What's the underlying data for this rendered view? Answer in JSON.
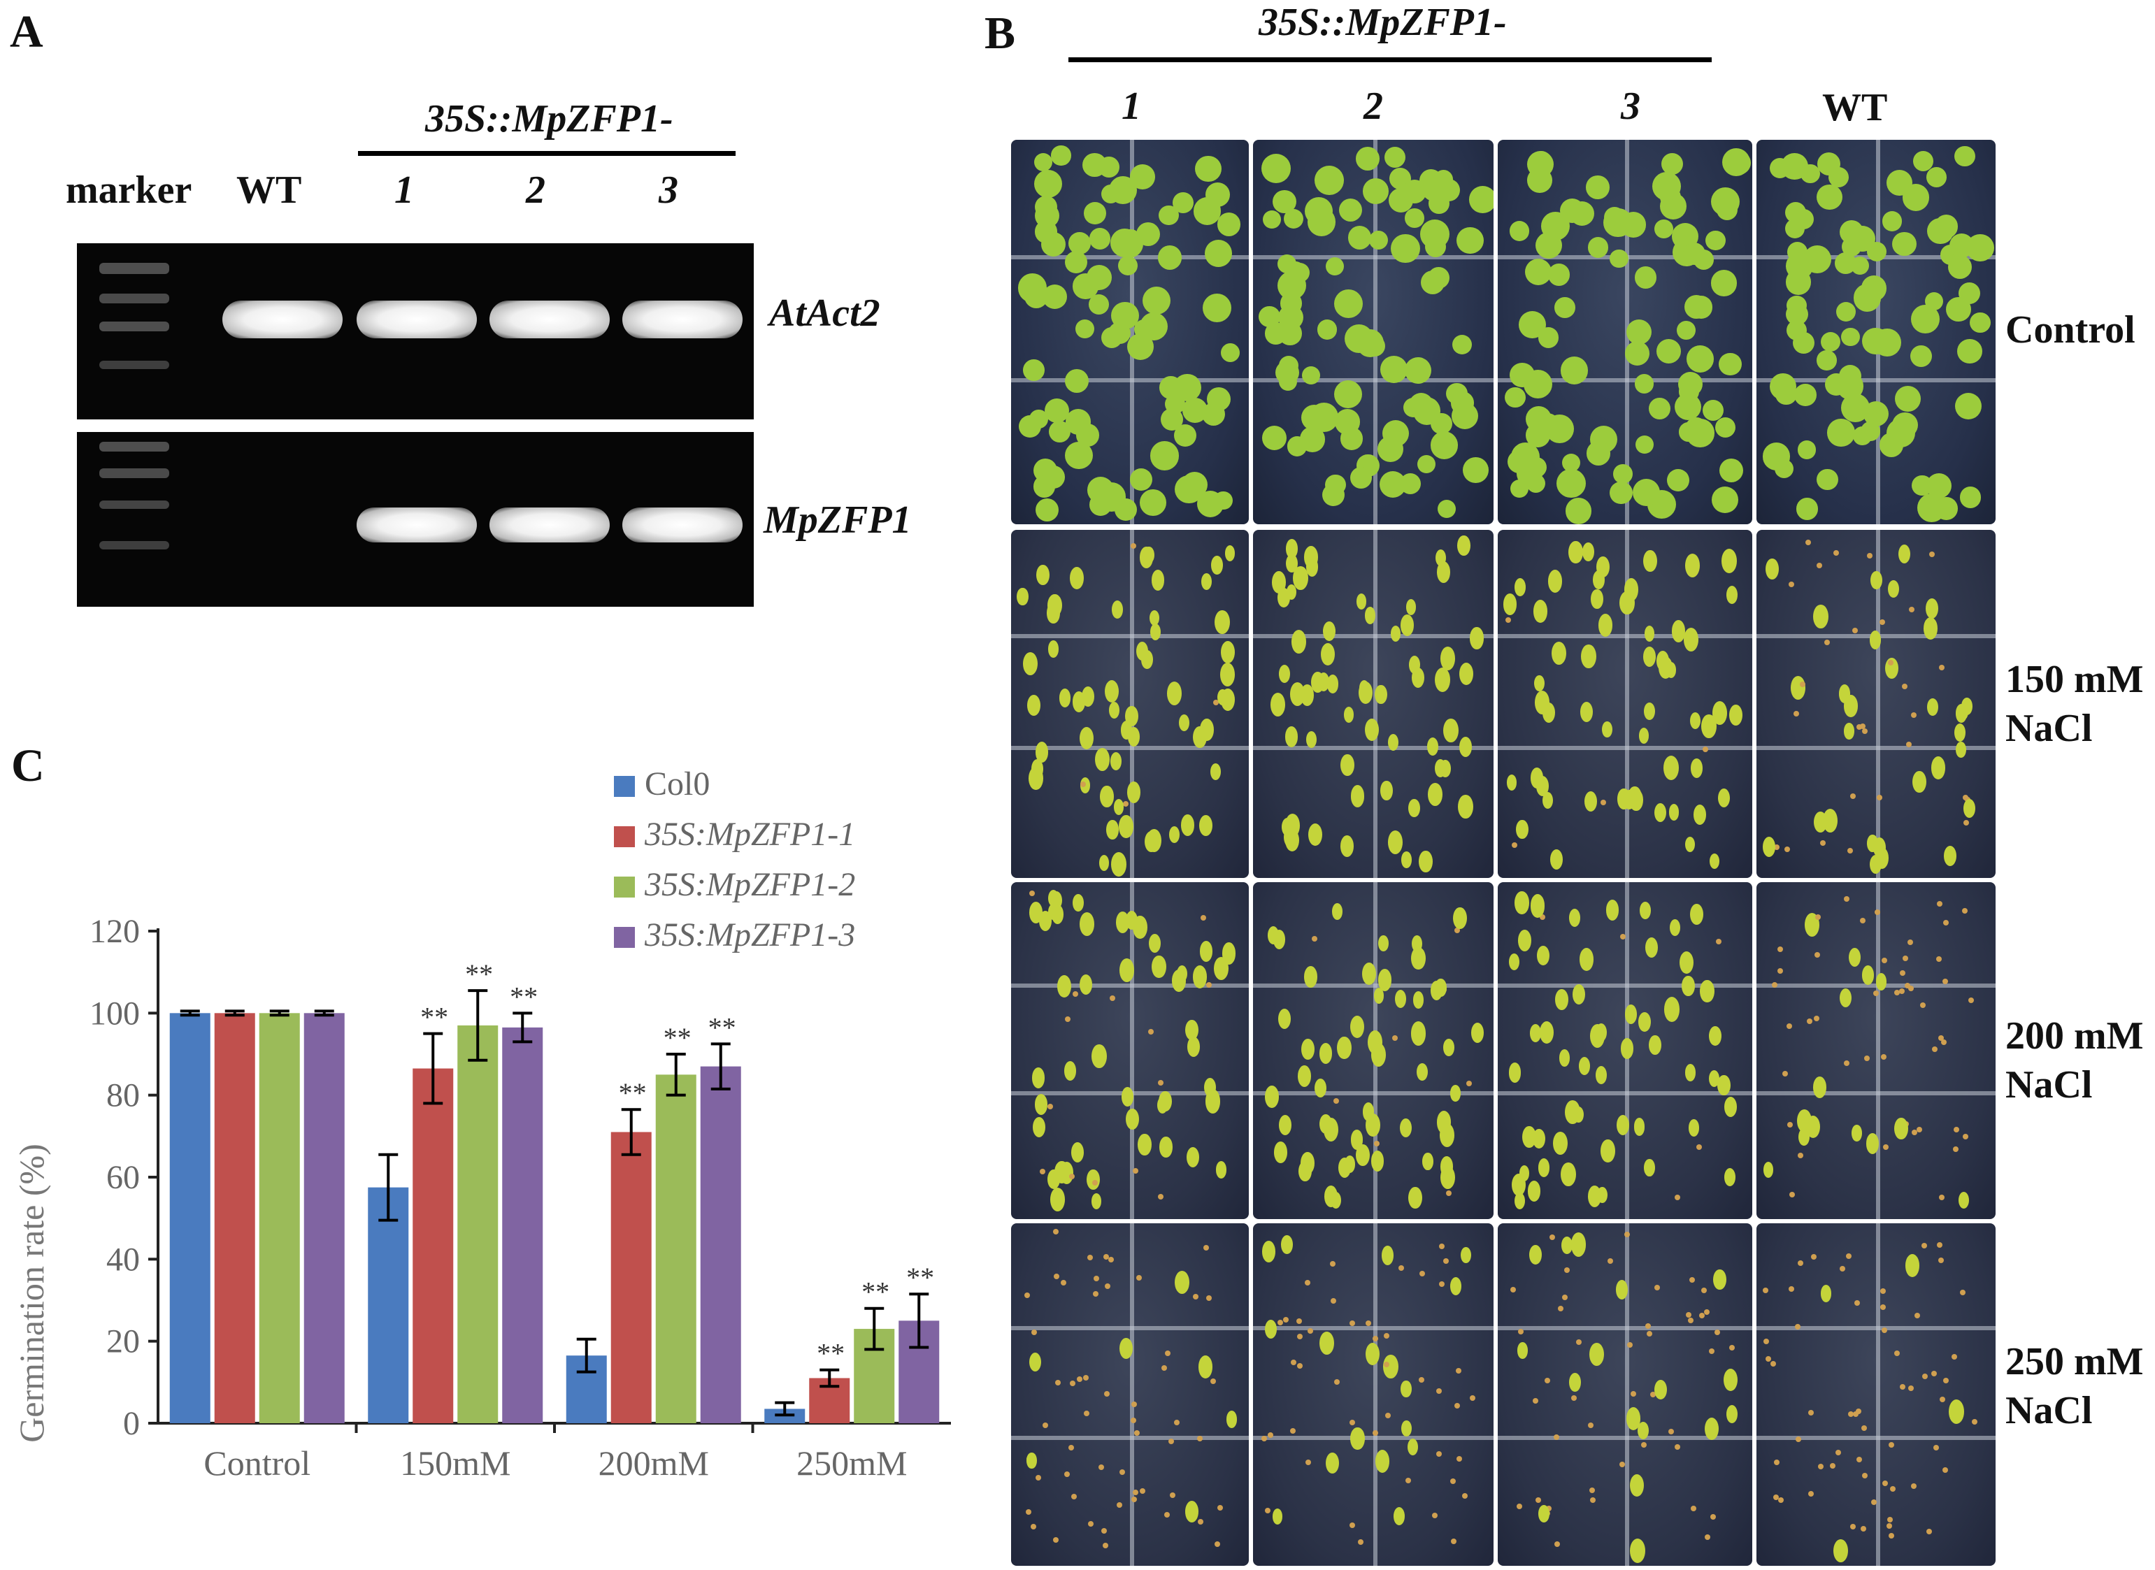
{
  "panel_a": {
    "letter": "A",
    "construct_label": "35S::MpZFP1-",
    "lanes": {
      "marker": "marker",
      "wt": "WT",
      "l1": "1",
      "l2": "2",
      "l3": "3"
    },
    "gene_top": "AtAct2",
    "gene_bottom": "MpZFP1"
  },
  "panel_b": {
    "letter": "B",
    "construct_label": "35S::MpZFP1-",
    "columns": [
      "1",
      "2",
      "3",
      "WT"
    ],
    "rows": [
      {
        "line1": "Control",
        "line2": ""
      },
      {
        "line1": "150 mM",
        "line2": "NaCl"
      },
      {
        "line1": "200 mM",
        "line2": "NaCl"
      },
      {
        "line1": "250 mM",
        "line2": "NaCl"
      }
    ]
  },
  "panel_c": {
    "letter": "C"
  },
  "chart_data": {
    "type": "bar",
    "title": "",
    "xlabel": "",
    "ylabel": "Germination rate (%)",
    "ylim": [
      0,
      120
    ],
    "yticks": [
      "0",
      "20",
      "40",
      "60",
      "80",
      "100",
      "120"
    ],
    "categories": [
      "Control",
      "150mM",
      "200mM",
      "250mM"
    ],
    "series": [
      {
        "name": "Col0",
        "color": "#4a7bbf",
        "values": [
          100,
          57.5,
          16.5,
          3.5
        ],
        "errors": [
          0.5,
          8,
          4,
          1.5
        ],
        "sig": [
          "",
          "",
          "",
          ""
        ]
      },
      {
        "name": "35S:MpZFP1-1",
        "color": "#c0504d",
        "values": [
          100,
          86.5,
          71,
          11
        ],
        "errors": [
          0.5,
          8.5,
          5.5,
          2
        ],
        "sig": [
          "",
          "**",
          "**",
          "**"
        ]
      },
      {
        "name": "35S:MpZFP1-2",
        "color": "#9bbb59",
        "values": [
          100,
          97,
          85,
          23
        ],
        "errors": [
          0.5,
          8.5,
          5,
          5
        ],
        "sig": [
          "",
          "**",
          "**",
          "**"
        ]
      },
      {
        "name": "35S:MpZFP1-3",
        "color": "#8064a2",
        "values": [
          100,
          96.5,
          87,
          25
        ],
        "errors": [
          0.5,
          3.5,
          5.5,
          6.5
        ],
        "sig": [
          "",
          "**",
          "**",
          "**"
        ]
      }
    ],
    "legend": "top-right",
    "grid": false
  }
}
